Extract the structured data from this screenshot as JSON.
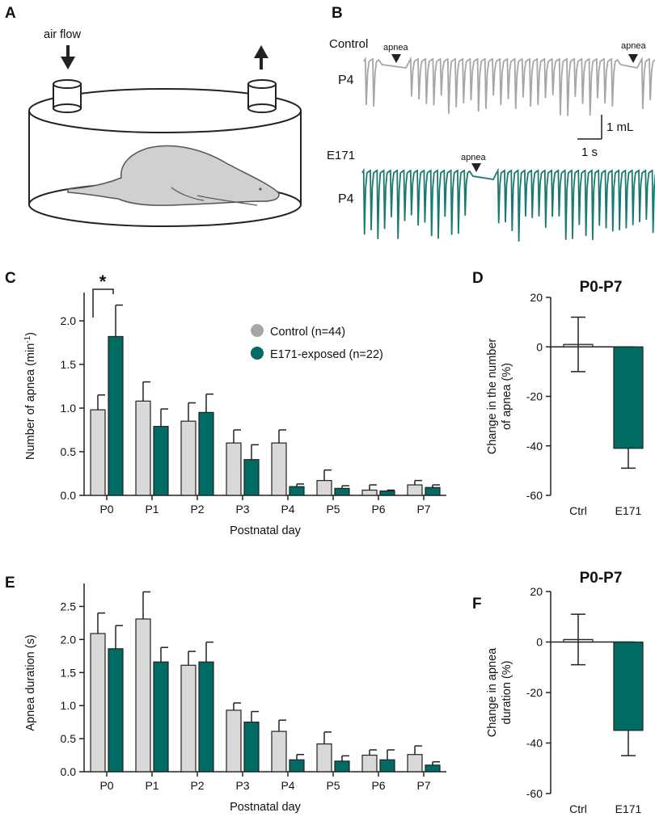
{
  "panels": {
    "a": {
      "letter": "A",
      "airflow_label": "air flow"
    },
    "b": {
      "letter": "B",
      "trace1_group": "Control",
      "trace1_day": "P4",
      "trace2_group": "E171",
      "trace2_day": "P4",
      "apnea_label": "apnea",
      "scale_y": "1 mL",
      "scale_x": "1 s"
    },
    "c": {
      "letter": "C"
    },
    "d": {
      "letter": "D"
    },
    "e": {
      "letter": "E"
    },
    "f": {
      "letter": "F"
    }
  },
  "colors": {
    "control_fill": "#d9d9d9",
    "e171_fill": "#006b62",
    "control_trace": "#a6a6a6",
    "e171_trace": "#1a7a72",
    "legend_control": "#a6a6a6"
  },
  "chart_data": [
    {
      "id": "C",
      "type": "bar",
      "categories": [
        "P0",
        "P1",
        "P2",
        "P3",
        "P4",
        "P5",
        "P6",
        "P7"
      ],
      "series": [
        {
          "name": "Control (n=44)",
          "values": [
            0.98,
            1.08,
            0.85,
            0.6,
            0.6,
            0.17,
            0.06,
            0.12
          ],
          "errors": [
            0.17,
            0.22,
            0.21,
            0.15,
            0.15,
            0.12,
            0.06,
            0.05
          ]
        },
        {
          "name": "E171-exposed (n=22)",
          "values": [
            1.82,
            0.79,
            0.95,
            0.41,
            0.1,
            0.08,
            0.05,
            0.09
          ],
          "errors": [
            0.36,
            0.2,
            0.21,
            0.17,
            0.03,
            0.03,
            0.01,
            0.03
          ]
        }
      ],
      "xlabel": "Postnatal day",
      "ylabel": "Number of apnea (min",
      "ylabel_sup": "-1",
      "ylabel_close": ")",
      "yticks": [
        "0.0",
        "0.5",
        "1.0",
        "1.5",
        "2.0"
      ],
      "ylim": [
        0,
        2.25
      ],
      "significance": "*",
      "legend": [
        "Control (n=44)",
        "E171-exposed (n=22)"
      ]
    },
    {
      "id": "D",
      "type": "bar",
      "title": "P0-P7",
      "categories": [
        "Ctrl",
        "E171"
      ],
      "values": [
        1,
        -41
      ],
      "errors": [
        11,
        8
      ],
      "ylabel_lines": [
        "Change in the number",
        "of apnea (%)"
      ],
      "yticks": [
        "20",
        "0",
        "-20",
        "-40",
        "-60"
      ],
      "ylim": [
        -60,
        20
      ]
    },
    {
      "id": "E",
      "type": "bar",
      "categories": [
        "P0",
        "P1",
        "P2",
        "P3",
        "P4",
        "P5",
        "P6",
        "P7"
      ],
      "series": [
        {
          "name": "Control",
          "values": [
            2.09,
            2.31,
            1.61,
            0.93,
            0.61,
            0.42,
            0.25,
            0.26
          ],
          "errors": [
            0.31,
            0.41,
            0.21,
            0.11,
            0.17,
            0.18,
            0.08,
            0.13
          ]
        },
        {
          "name": "E171-exposed",
          "values": [
            1.86,
            1.66,
            1.66,
            0.75,
            0.18,
            0.16,
            0.18,
            0.1
          ],
          "errors": [
            0.35,
            0.22,
            0.3,
            0.16,
            0.08,
            0.08,
            0.15,
            0.05
          ]
        }
      ],
      "xlabel": "Postnatal day",
      "ylabel": "Apnea duration (s)",
      "yticks": [
        "0.0",
        "0.5",
        "1.0",
        "1.5",
        "2.0",
        "2.5"
      ],
      "ylim": [
        0,
        2.75
      ]
    },
    {
      "id": "F",
      "type": "bar",
      "title": "P0-P7",
      "categories": [
        "Ctrl",
        "E171"
      ],
      "values": [
        1,
        -35
      ],
      "errors": [
        10,
        10
      ],
      "ylabel_lines": [
        "Change in apnea",
        "duration (%)"
      ],
      "yticks": [
        "20",
        "0",
        "-20",
        "-40",
        "-60"
      ],
      "ylim": [
        -60,
        20
      ]
    }
  ]
}
